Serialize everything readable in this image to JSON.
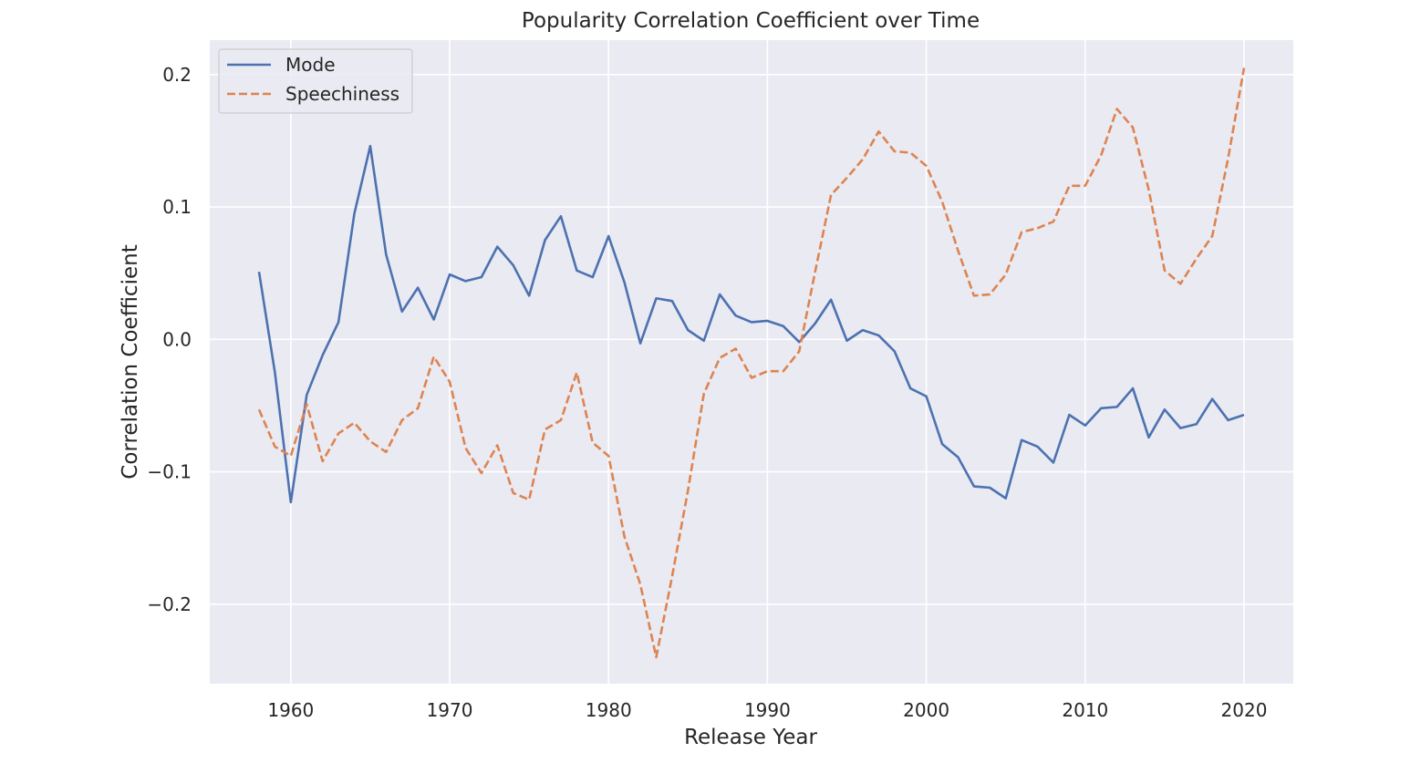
{
  "chart_data": {
    "type": "line",
    "title": "Popularity Correlation Coefficient over Time",
    "xlabel": "Release Year",
    "ylabel": "Correlation Coefficient",
    "xlim": [
      1954.9,
      2023.1
    ],
    "ylim": [
      -0.26,
      0.226
    ],
    "xticks": [
      1960,
      1970,
      1980,
      1990,
      2000,
      2010,
      2020
    ],
    "xtick_labels": [
      "1960",
      "1970",
      "1980",
      "1990",
      "2000",
      "2010",
      "2020"
    ],
    "yticks": [
      -0.2,
      -0.1,
      0.0,
      0.1,
      0.2
    ],
    "ytick_labels": [
      "−0.2",
      "−0.1",
      "0.0",
      "0.1",
      "0.2"
    ],
    "grid": true,
    "legend_position": "top-left",
    "background": "#eaeaf2",
    "grid_color": "#ffffff",
    "x": [
      1958,
      1959,
      1960,
      1961,
      1962,
      1963,
      1964,
      1965,
      1966,
      1967,
      1968,
      1969,
      1970,
      1971,
      1972,
      1973,
      1974,
      1975,
      1976,
      1977,
      1978,
      1979,
      1980,
      1981,
      1982,
      1983,
      1984,
      1985,
      1986,
      1987,
      1988,
      1989,
      1990,
      1991,
      1992,
      1993,
      1994,
      1995,
      1996,
      1997,
      1998,
      1999,
      2000,
      2001,
      2002,
      2003,
      2004,
      2005,
      2006,
      2007,
      2008,
      2009,
      2010,
      2011,
      2012,
      2013,
      2014,
      2015,
      2016,
      2017,
      2018,
      2019,
      2020
    ],
    "series": [
      {
        "name": "Mode",
        "color": "#4c72b0",
        "dash": "solid",
        "values": [
          0.051,
          -0.025,
          -0.123,
          -0.042,
          -0.012,
          0.013,
          0.095,
          0.146,
          0.064,
          0.021,
          0.039,
          0.015,
          0.049,
          0.044,
          0.047,
          0.07,
          0.056,
          0.033,
          0.075,
          0.093,
          0.052,
          0.047,
          0.078,
          0.043,
          -0.003,
          0.031,
          0.029,
          0.007,
          -0.001,
          0.034,
          0.018,
          0.013,
          0.014,
          0.01,
          -0.002,
          0.012,
          0.03,
          -0.001,
          0.007,
          0.003,
          -0.009,
          -0.037,
          -0.043,
          -0.079,
          -0.089,
          -0.111,
          -0.112,
          -0.12,
          -0.076,
          -0.081,
          -0.093,
          -0.057,
          -0.065,
          -0.052,
          -0.051,
          -0.037,
          -0.074,
          -0.053,
          -0.067,
          -0.064,
          -0.045,
          -0.061,
          -0.057
        ]
      },
      {
        "name": "Speechiness",
        "color": "#dd8452",
        "dash": "dashed",
        "values": [
          -0.053,
          -0.081,
          -0.088,
          -0.049,
          -0.092,
          -0.071,
          -0.063,
          -0.077,
          -0.085,
          -0.061,
          -0.052,
          -0.013,
          -0.032,
          -0.082,
          -0.101,
          -0.08,
          -0.116,
          -0.121,
          -0.068,
          -0.061,
          -0.025,
          -0.078,
          -0.088,
          -0.149,
          -0.185,
          -0.24,
          -0.179,
          -0.114,
          -0.041,
          -0.014,
          -0.007,
          -0.029,
          -0.024,
          -0.024,
          -0.009,
          0.051,
          0.109,
          0.122,
          0.136,
          0.157,
          0.142,
          0.141,
          0.131,
          0.104,
          0.067,
          0.033,
          0.034,
          0.049,
          0.081,
          0.084,
          0.089,
          0.116,
          0.116,
          0.139,
          0.174,
          0.16,
          0.113,
          0.052,
          0.042,
          0.061,
          0.078,
          0.137,
          0.205
        ]
      }
    ]
  }
}
